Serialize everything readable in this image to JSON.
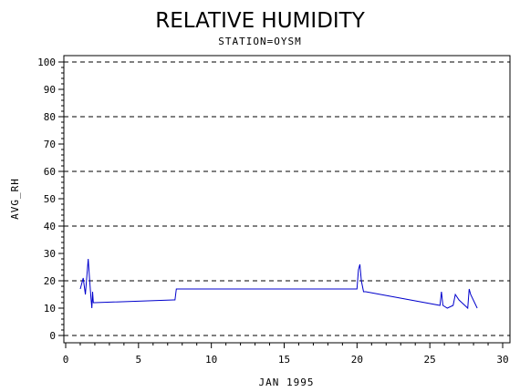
{
  "chart_data": {
    "type": "line",
    "title": "RELATIVE HUMIDITY",
    "subtitle": "STATION=OYSM",
    "xlabel": "JAN 1995",
    "ylabel": "AVG_RH",
    "xlim": [
      0,
      30
    ],
    "ylim": [
      0,
      100
    ],
    "x_ticks": [
      0,
      5,
      10,
      15,
      20,
      25,
      30
    ],
    "y_ticks": [
      0,
      10,
      20,
      30,
      40,
      50,
      60,
      70,
      80,
      90,
      100
    ],
    "grid_y": [
      0,
      20,
      40,
      60,
      80,
      100
    ],
    "grid_style": "dashed",
    "line_color": "#0000cc",
    "series": [
      {
        "x": [
          1.0,
          1.2,
          1.35,
          1.55,
          1.65,
          1.75,
          1.8,
          1.85,
          1.9,
          2.0,
          7.4,
          7.5,
          7.6,
          10.0,
          17.0,
          20.0,
          20.1,
          20.2,
          20.3,
          20.45,
          20.5,
          20.6,
          25.7,
          25.8,
          25.9,
          26.2,
          26.6,
          26.75,
          27.0,
          27.6,
          27.7,
          27.8,
          28.25
        ],
        "y": [
          17,
          21,
          15,
          28,
          20,
          13,
          10,
          16,
          12,
          12,
          13,
          13,
          17,
          17,
          17,
          17,
          24,
          26,
          20,
          16,
          16,
          16,
          11,
          16,
          11,
          10,
          11,
          15,
          13,
          10,
          17,
          15,
          10
        ]
      }
    ]
  }
}
